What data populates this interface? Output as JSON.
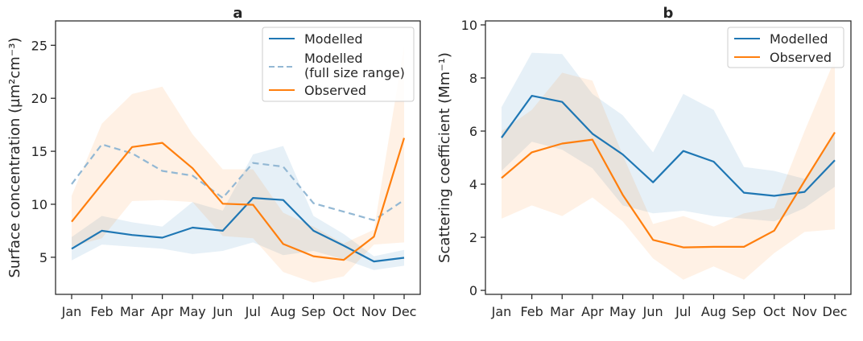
{
  "chart_data": [
    {
      "type": "line",
      "title": "a",
      "xlabel": "",
      "ylabel": "Surface concentration (µm²cm⁻³)",
      "categories": [
        "Jan",
        "Feb",
        "Mar",
        "Apr",
        "May",
        "Jun",
        "Jul",
        "Aug",
        "Sep",
        "Oct",
        "Nov",
        "Dec"
      ],
      "ylim": [
        1.5,
        27.3
      ],
      "yticks": [
        5,
        10,
        15,
        20,
        25
      ],
      "grid": false,
      "legend_position": "top-right",
      "series": [
        {
          "name": "Modelled",
          "color": "#1f77b4",
          "style": "solid",
          "values": [
            5.8,
            7.5,
            7.1,
            6.85,
            7.8,
            7.5,
            10.6,
            10.4,
            7.5,
            6.1,
            4.6,
            4.95
          ],
          "band_lower": [
            4.7,
            6.2,
            6.0,
            5.8,
            5.3,
            5.6,
            6.4,
            5.2,
            5.6,
            4.8,
            3.8,
            4.2
          ],
          "band_upper": [
            6.9,
            8.9,
            8.3,
            7.9,
            10.2,
            9.4,
            14.7,
            15.5,
            8.9,
            7.2,
            5.1,
            5.7
          ]
        },
        {
          "name": "Modelled\n(full size range)",
          "color": "#93b8d4",
          "style": "dashed",
          "values": [
            11.9,
            15.65,
            14.8,
            13.15,
            12.7,
            10.6,
            13.9,
            13.55,
            10.1,
            9.3,
            8.5,
            10.4
          ]
        },
        {
          "name": "Observed",
          "color": "#ff7f0e",
          "style": "solid",
          "values": [
            8.35,
            11.9,
            15.4,
            15.8,
            13.4,
            10.05,
            9.95,
            6.25,
            5.1,
            4.75,
            6.95,
            16.25
          ],
          "band_lower": [
            6.0,
            6.8,
            10.3,
            10.4,
            10.2,
            7.0,
            6.8,
            3.6,
            2.6,
            3.2,
            6.2,
            6.4
          ],
          "band_upper": [
            10.8,
            17.6,
            20.4,
            21.1,
            16.6,
            13.3,
            13.3,
            9.2,
            7.9,
            6.3,
            7.6,
            25.0
          ]
        }
      ]
    },
    {
      "type": "line",
      "title": "b",
      "xlabel": "",
      "ylabel": "Scattering coefficient (Mm⁻¹)",
      "categories": [
        "Jan",
        "Feb",
        "Mar",
        "Apr",
        "May",
        "Jun",
        "Jul",
        "Aug",
        "Sep",
        "Oct",
        "Nov",
        "Dec"
      ],
      "ylim": [
        -0.15,
        10.15
      ],
      "yticks": [
        0,
        2,
        4,
        6,
        8,
        10
      ],
      "grid": false,
      "legend_position": "top-right",
      "series": [
        {
          "name": "Modelled",
          "color": "#1f77b4",
          "style": "solid",
          "values": [
            5.75,
            7.33,
            7.1,
            5.9,
            5.12,
            4.07,
            5.25,
            4.85,
            3.68,
            3.56,
            3.71,
            4.9
          ],
          "band_lower": [
            4.5,
            5.6,
            5.3,
            4.6,
            3.2,
            2.9,
            3.0,
            2.8,
            2.7,
            2.6,
            3.1,
            3.9
          ],
          "band_upper": [
            6.9,
            8.95,
            8.9,
            7.4,
            6.6,
            5.2,
            7.4,
            6.8,
            4.65,
            4.5,
            4.2,
            5.9
          ]
        },
        {
          "name": "Observed",
          "color": "#ff7f0e",
          "style": "solid",
          "values": [
            4.23,
            5.2,
            5.53,
            5.68,
            3.6,
            1.9,
            1.62,
            1.64,
            1.64,
            2.25,
            4.12,
            5.95
          ],
          "band_lower": [
            2.7,
            3.2,
            2.8,
            3.5,
            2.6,
            1.2,
            0.4,
            0.9,
            0.4,
            1.4,
            2.2,
            2.3
          ],
          "band_upper": [
            6.0,
            6.8,
            8.2,
            7.9,
            5.1,
            2.5,
            2.8,
            2.4,
            2.9,
            3.1,
            6.0,
            8.7
          ]
        }
      ]
    }
  ]
}
